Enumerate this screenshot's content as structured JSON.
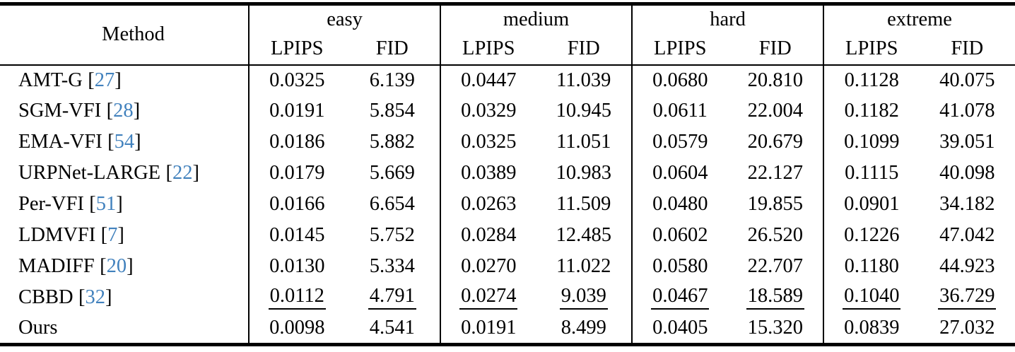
{
  "table": {
    "method_header": "Method",
    "punct": {
      "open": "[",
      "close": "]"
    },
    "groups": [
      {
        "label": "easy",
        "sub": [
          "LPIPS",
          "FID"
        ]
      },
      {
        "label": "medium",
        "sub": [
          "LPIPS",
          "FID"
        ]
      },
      {
        "label": "hard",
        "sub": [
          "LPIPS",
          "FID"
        ]
      },
      {
        "label": "extreme",
        "sub": [
          "LPIPS",
          "FID"
        ]
      }
    ],
    "rows": [
      {
        "method": "AMT-G",
        "cite": "27",
        "emphasis": "none",
        "values": [
          "0.0325",
          "6.139",
          "0.0447",
          "11.039",
          "0.0680",
          "20.810",
          "0.1128",
          "40.075"
        ]
      },
      {
        "method": "SGM-VFI",
        "cite": "28",
        "emphasis": "none",
        "values": [
          "0.0191",
          "5.854",
          "0.0329",
          "10.945",
          "0.0611",
          "22.004",
          "0.1182",
          "41.078"
        ]
      },
      {
        "method": "EMA-VFI",
        "cite": "54",
        "emphasis": "none",
        "values": [
          "0.0186",
          "5.882",
          "0.0325",
          "11.051",
          "0.0579",
          "20.679",
          "0.1099",
          "39.051"
        ]
      },
      {
        "method": "URPNet-LARGE",
        "cite": "22",
        "emphasis": "none",
        "values": [
          "0.0179",
          "5.669",
          "0.0389",
          "10.983",
          "0.0604",
          "22.127",
          "0.1115",
          "40.098"
        ]
      },
      {
        "method": "Per-VFI",
        "cite": "51",
        "emphasis": "none",
        "values": [
          "0.0166",
          "6.654",
          "0.0263",
          "11.509",
          "0.0480",
          "19.855",
          "0.0901",
          "34.182"
        ]
      },
      {
        "method": "LDMVFI",
        "cite": "7",
        "emphasis": "none",
        "values": [
          "0.0145",
          "5.752",
          "0.0284",
          "12.485",
          "0.0602",
          "26.520",
          "0.1226",
          "47.042"
        ]
      },
      {
        "method": "MADIFF",
        "cite": "20",
        "emphasis": "none",
        "values": [
          "0.0130",
          "5.334",
          "0.0270",
          "11.022",
          "0.0580",
          "22.707",
          "0.1180",
          "44.923"
        ]
      },
      {
        "method": "CBBD",
        "cite": "32",
        "emphasis": "underline",
        "values": [
          "0.0112",
          "4.791",
          "0.0274",
          "9.039",
          "0.0467",
          "18.589",
          "0.1040",
          "36.729"
        ]
      },
      {
        "method": "Ours",
        "emphasis": "bold",
        "values": [
          "0.0098",
          "4.541",
          "0.0191",
          "8.499",
          "0.0405",
          "15.320",
          "0.0839",
          "27.032"
        ]
      }
    ]
  },
  "colors": {
    "citation_blue": "#4181bd",
    "text": "#000000",
    "rule": "#000000",
    "background": "#ffffff"
  }
}
